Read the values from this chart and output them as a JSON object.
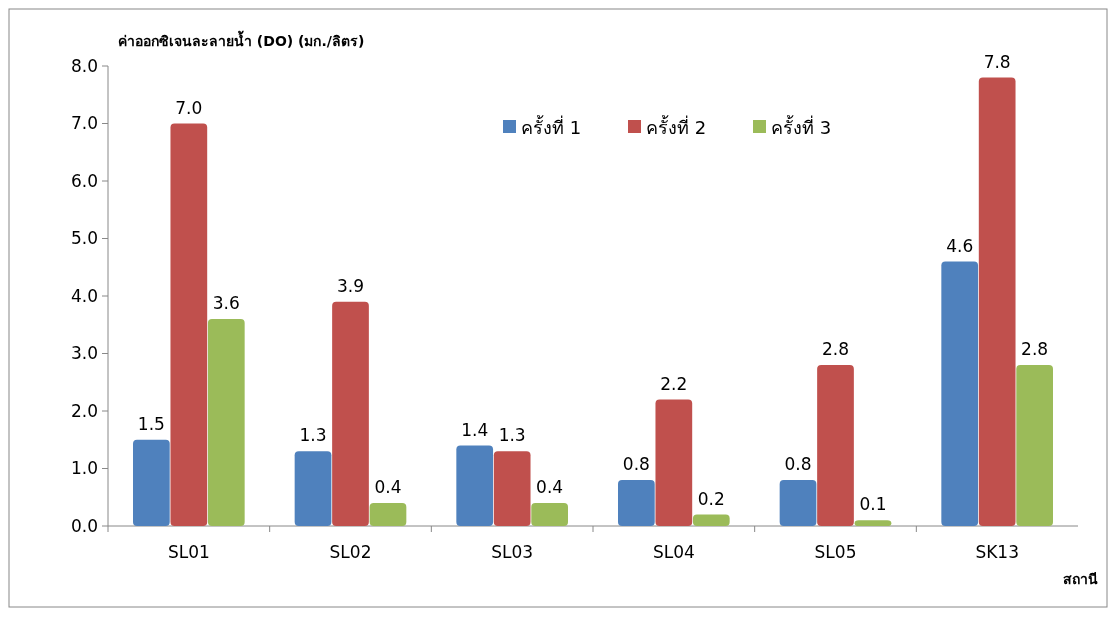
{
  "chart_data": {
    "type": "bar",
    "ylabel": "ค่าออกซิเจนละลายน้ำ (DO) (มก./ลิตร)",
    "xlabel": "สถานี",
    "categories": [
      "SL01",
      "SL02",
      "SL03",
      "SL04",
      "SL05",
      "SK13"
    ],
    "series": [
      {
        "name": "ครั้งที่ 1",
        "color": "#4f81bd",
        "values": [
          1.5,
          1.3,
          1.4,
          0.8,
          0.8,
          4.6
        ],
        "value_labels": [
          "1.5",
          "1.3",
          "1.4",
          "0.8",
          "0.8",
          "4.6"
        ]
      },
      {
        "name": "ครั้งที่ 2",
        "color": "#c0504d",
        "values": [
          7.0,
          3.9,
          1.3,
          2.2,
          2.8,
          7.8
        ],
        "value_labels": [
          "7.0",
          "3.9",
          "1.3",
          "2.2",
          "2.8",
          "7.8"
        ]
      },
      {
        "name": "ครั้งที่ 3",
        "color": "#9bbb59",
        "values": [
          3.6,
          0.4,
          0.4,
          0.2,
          0.1,
          2.8
        ],
        "value_labels": [
          "3.6",
          "0.4",
          "0.4",
          "0.2",
          "0.1",
          "2.8"
        ]
      }
    ],
    "ylim": [
      0,
      8
    ],
    "yticks": [
      {
        "value": 0,
        "label": "0.0"
      },
      {
        "value": 1,
        "label": "1.0"
      },
      {
        "value": 2,
        "label": "2.0"
      },
      {
        "value": 3,
        "label": "3.0"
      },
      {
        "value": 4,
        "label": "4.0"
      },
      {
        "value": 5,
        "label": "5.0"
      },
      {
        "value": 6,
        "label": "6.0"
      },
      {
        "value": 7,
        "label": "7.0"
      },
      {
        "value": 8,
        "label": "8.0"
      }
    ],
    "grid": false,
    "legend": "top"
  }
}
